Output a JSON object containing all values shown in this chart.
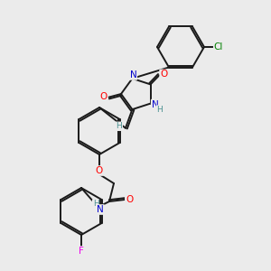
{
  "background_color": "#ebebeb",
  "atom_colors": {
    "O": "#ff0000",
    "N": "#0000cd",
    "Cl": "#008000",
    "F": "#ee00ee",
    "C": "#000000",
    "H": "#4a9090"
  },
  "bond_color": "#1a1a1a",
  "figsize": [
    3.0,
    3.0
  ],
  "dpi": 100
}
